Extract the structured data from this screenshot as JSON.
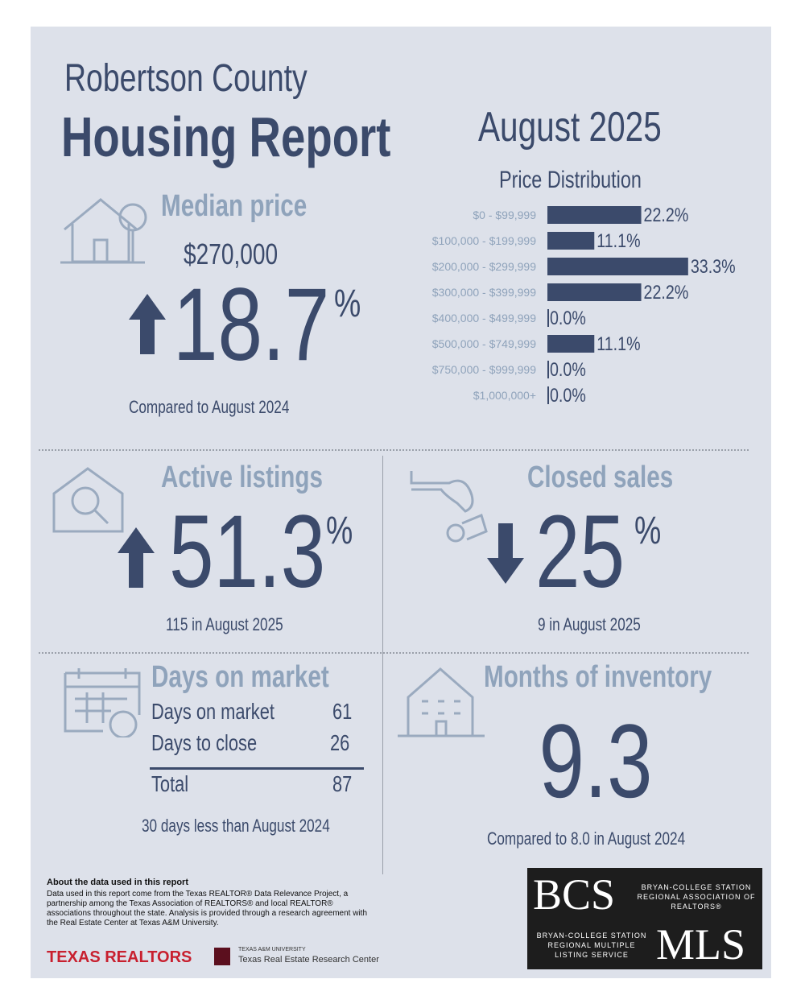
{
  "header": {
    "county": "Robertson County",
    "title": "Housing Report",
    "period": "August 2025"
  },
  "median": {
    "label": "Median price",
    "price": "$270,000",
    "direction": "up",
    "change": 18.7,
    "unit": "%",
    "note": "Compared to August 2024"
  },
  "chart_data": {
    "type": "bar",
    "orientation": "horizontal",
    "title": "Price Distribution",
    "categories": [
      "$0 - $99,999",
      "$100,000 - $199,999",
      "$200,000 - $299,999",
      "$300,000 - $399,999",
      "$400,000 - $499,999",
      "$500,000 - $749,999",
      "$750,000 - $999,999",
      "$1,000,000+"
    ],
    "values": [
      22.2,
      11.1,
      33.3,
      22.2,
      0.0,
      11.1,
      0.0,
      0.0
    ],
    "value_labels": [
      "22.2%",
      "11.1%",
      "33.3%",
      "22.2%",
      "0.0%",
      "11.1%",
      "0.0%",
      "0.0%"
    ],
    "color": "#3b4a6b"
  },
  "active": {
    "label": "Active listings",
    "direction": "up",
    "change": 51.3,
    "unit": "%",
    "note": "115 in August 2025"
  },
  "closed": {
    "label": "Closed sales",
    "direction": "down",
    "change": 25,
    "unit": "%",
    "note": "9 in August 2025"
  },
  "days": {
    "label": "Days on market",
    "rows": [
      [
        "Days on market",
        61
      ],
      [
        "Days to close",
        26
      ]
    ],
    "total": [
      "Total",
      87
    ],
    "note": "30 days less than August 2024"
  },
  "inventory": {
    "label": "Months of inventory",
    "value": 9.3,
    "note": "Compared to 8.0 in August 2024"
  },
  "footer": {
    "about_title": "About the data used in this report",
    "about_text": "Data used in this report come from the Texas REALTOR® Data Relevance Project, a partnership among the Texas Association of REALTORS® and local REALTOR® associations throughout the state. Analysis is provided through a research agreement with the Real Estate Center at Texas A&M University.",
    "texas_realtors": "TEXAS REALTORS",
    "tamu_small": "TEXAS A&M UNIVERSITY",
    "tamu": "Texas Real Estate Research Center",
    "bcs": "BCS",
    "bcs_text": "BRYAN-COLLEGE STATION REGIONAL ASSOCIATION OF REALTORS®",
    "mls_text": "BRYAN-COLLEGE STATION REGIONAL MULTIPLE LISTING SERVICE",
    "mls": "MLS"
  }
}
